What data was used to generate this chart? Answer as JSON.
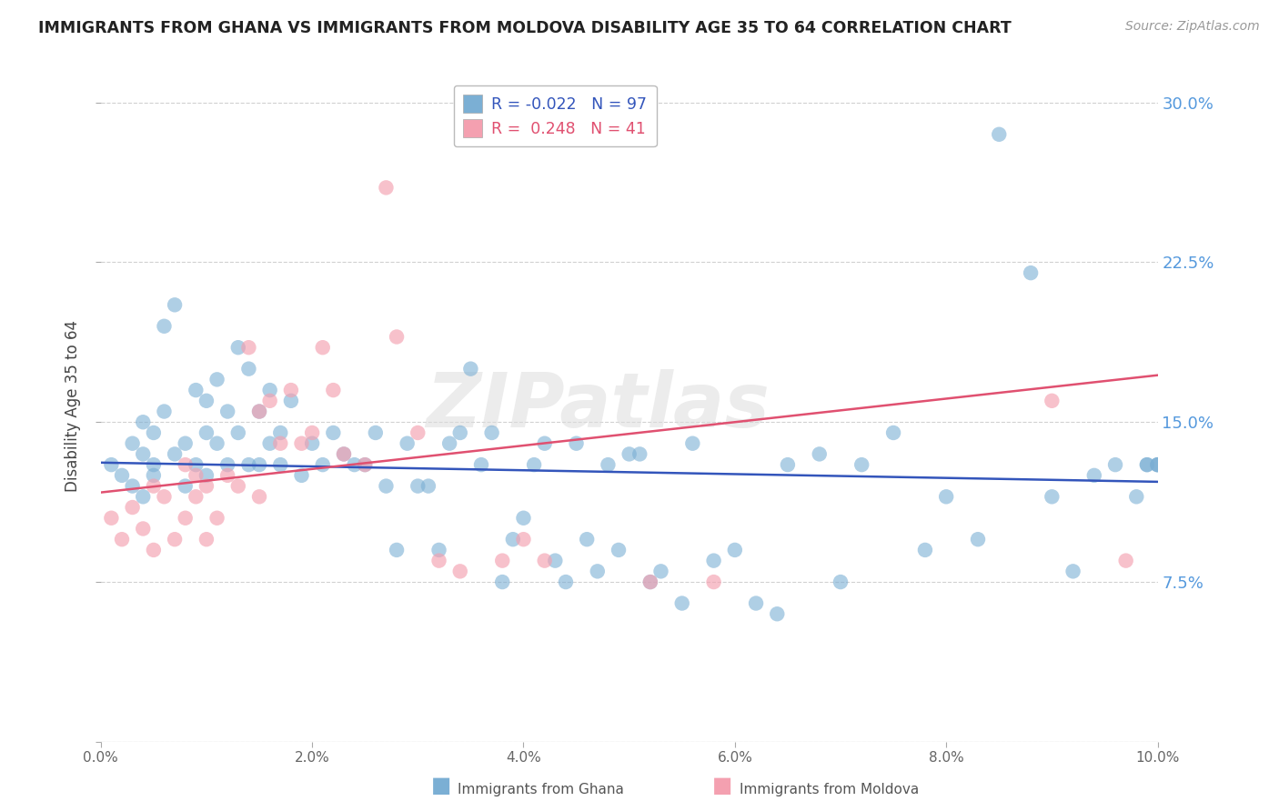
{
  "title": "IMMIGRANTS FROM GHANA VS IMMIGRANTS FROM MOLDOVA DISABILITY AGE 35 TO 64 CORRELATION CHART",
  "source": "Source: ZipAtlas.com",
  "ylabel": "Disability Age 35 to 64",
  "xlim": [
    0.0,
    0.1
  ],
  "ylim": [
    0.0,
    0.315
  ],
  "xtick_vals": [
    0.0,
    0.02,
    0.04,
    0.06,
    0.08,
    0.1
  ],
  "xtick_labels": [
    "0.0%",
    "2.0%",
    "4.0%",
    "6.0%",
    "8.0%",
    "10.0%"
  ],
  "ytick_vals": [
    0.0,
    0.075,
    0.15,
    0.225,
    0.3
  ],
  "ytick_labels_right": [
    "",
    "7.5%",
    "15.0%",
    "22.5%",
    "30.0%"
  ],
  "ghana_color": "#7bafd4",
  "moldova_color": "#f4a0b0",
  "ghana_line_color": "#3355bb",
  "moldova_line_color": "#e05070",
  "ghana_R": -0.022,
  "ghana_N": 97,
  "moldova_R": 0.248,
  "moldova_N": 41,
  "ghana_label": "Immigrants from Ghana",
  "moldova_label": "Immigrants from Moldova",
  "watermark": "ZIPatlas",
  "background_color": "#ffffff",
  "grid_color": "#cccccc",
  "title_color": "#222222",
  "right_label_color": "#5599dd",
  "ghana_x": [
    0.001,
    0.002,
    0.003,
    0.003,
    0.004,
    0.004,
    0.004,
    0.005,
    0.005,
    0.005,
    0.006,
    0.006,
    0.007,
    0.007,
    0.008,
    0.008,
    0.009,
    0.009,
    0.01,
    0.01,
    0.01,
    0.011,
    0.011,
    0.012,
    0.012,
    0.013,
    0.013,
    0.014,
    0.014,
    0.015,
    0.015,
    0.016,
    0.016,
    0.017,
    0.017,
    0.018,
    0.019,
    0.02,
    0.021,
    0.022,
    0.023,
    0.024,
    0.025,
    0.026,
    0.027,
    0.028,
    0.029,
    0.03,
    0.031,
    0.032,
    0.033,
    0.034,
    0.035,
    0.036,
    0.037,
    0.038,
    0.039,
    0.04,
    0.041,
    0.042,
    0.043,
    0.044,
    0.045,
    0.046,
    0.047,
    0.048,
    0.049,
    0.05,
    0.051,
    0.052,
    0.053,
    0.055,
    0.056,
    0.058,
    0.06,
    0.062,
    0.064,
    0.065,
    0.068,
    0.07,
    0.072,
    0.075,
    0.078,
    0.08,
    0.083,
    0.085,
    0.088,
    0.09,
    0.092,
    0.094,
    0.096,
    0.098,
    0.099,
    0.099,
    0.1,
    0.1,
    0.1
  ],
  "ghana_y": [
    0.13,
    0.125,
    0.14,
    0.12,
    0.135,
    0.15,
    0.115,
    0.145,
    0.13,
    0.125,
    0.195,
    0.155,
    0.205,
    0.135,
    0.14,
    0.12,
    0.165,
    0.13,
    0.16,
    0.145,
    0.125,
    0.17,
    0.14,
    0.155,
    0.13,
    0.185,
    0.145,
    0.175,
    0.13,
    0.155,
    0.13,
    0.165,
    0.14,
    0.145,
    0.13,
    0.16,
    0.125,
    0.14,
    0.13,
    0.145,
    0.135,
    0.13,
    0.13,
    0.145,
    0.12,
    0.09,
    0.14,
    0.12,
    0.12,
    0.09,
    0.14,
    0.145,
    0.175,
    0.13,
    0.145,
    0.075,
    0.095,
    0.105,
    0.13,
    0.14,
    0.085,
    0.075,
    0.14,
    0.095,
    0.08,
    0.13,
    0.09,
    0.135,
    0.135,
    0.075,
    0.08,
    0.065,
    0.14,
    0.085,
    0.09,
    0.065,
    0.06,
    0.13,
    0.135,
    0.075,
    0.13,
    0.145,
    0.09,
    0.115,
    0.095,
    0.285,
    0.22,
    0.115,
    0.08,
    0.125,
    0.13,
    0.115,
    0.13,
    0.13,
    0.13,
    0.13,
    0.13
  ],
  "moldova_x": [
    0.001,
    0.002,
    0.003,
    0.004,
    0.005,
    0.005,
    0.006,
    0.007,
    0.008,
    0.008,
    0.009,
    0.009,
    0.01,
    0.01,
    0.011,
    0.012,
    0.013,
    0.014,
    0.015,
    0.015,
    0.016,
    0.017,
    0.018,
    0.019,
    0.02,
    0.021,
    0.022,
    0.023,
    0.025,
    0.027,
    0.028,
    0.03,
    0.032,
    0.034,
    0.038,
    0.04,
    0.042,
    0.052,
    0.058,
    0.09,
    0.097
  ],
  "moldova_y": [
    0.105,
    0.095,
    0.11,
    0.1,
    0.12,
    0.09,
    0.115,
    0.095,
    0.13,
    0.105,
    0.125,
    0.115,
    0.12,
    0.095,
    0.105,
    0.125,
    0.12,
    0.185,
    0.155,
    0.115,
    0.16,
    0.14,
    0.165,
    0.14,
    0.145,
    0.185,
    0.165,
    0.135,
    0.13,
    0.26,
    0.19,
    0.145,
    0.085,
    0.08,
    0.085,
    0.095,
    0.085,
    0.075,
    0.075,
    0.16,
    0.085
  ],
  "ghana_line_x0": 0.0,
  "ghana_line_y0": 0.131,
  "ghana_line_x1": 0.1,
  "ghana_line_y1": 0.122,
  "moldova_line_x0": 0.0,
  "moldova_line_y0": 0.117,
  "moldova_line_x1": 0.1,
  "moldova_line_y1": 0.172
}
